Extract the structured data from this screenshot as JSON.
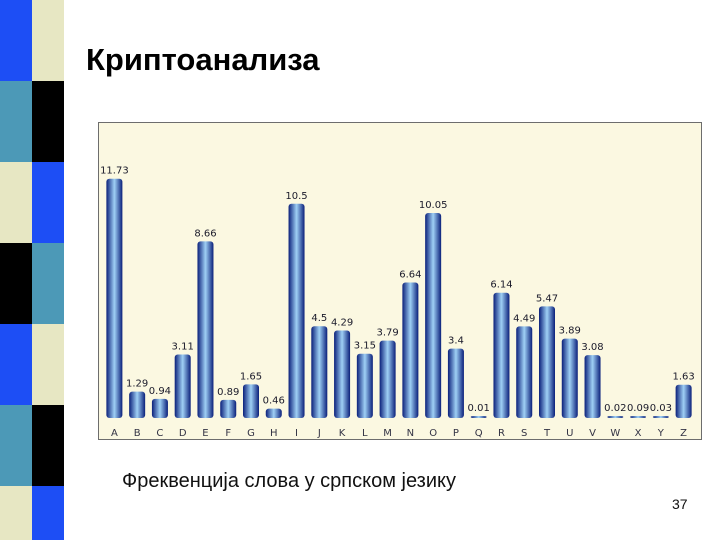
{
  "slide": {
    "title": "Криптоанализа",
    "caption": "Фреквенција слова у српском језику",
    "page_number": "37"
  },
  "colors": {
    "panel_background": "#fbf8e1",
    "bar_dark": "#0a1f7a",
    "bar_light": "#9fd0f5",
    "strip_blue": "#1d4ef5",
    "strip_teal": "#4c99b7",
    "strip_cream": "#e7e7c3",
    "strip_black": "#000000"
  },
  "chart_data": {
    "type": "bar",
    "title": "",
    "xlabel": "",
    "ylabel": "",
    "ylim": [
      0,
      12.5
    ],
    "grid": false,
    "legend": "none",
    "categories": [
      "A",
      "B",
      "C",
      "D",
      "E",
      "F",
      "G",
      "H",
      "I",
      "J",
      "K",
      "L",
      "M",
      "N",
      "O",
      "P",
      "Q",
      "R",
      "S",
      "T",
      "U",
      "V",
      "W",
      "X",
      "Y",
      "Z"
    ],
    "values": [
      11.73,
      1.29,
      0.94,
      3.11,
      8.66,
      0.89,
      1.65,
      0.46,
      10.5,
      4.5,
      4.29,
      3.15,
      3.79,
      6.64,
      10.05,
      3.4,
      0.01,
      6.14,
      4.49,
      5.47,
      3.89,
      3.08,
      0.02,
      0.09,
      0.03,
      1.63
    ],
    "value_labels": [
      "11.73",
      "1.29",
      "0.94",
      "3.11",
      "8.66",
      "0.89",
      "1.65",
      "0.46",
      "10.5",
      "4.5",
      "4.29",
      "3.15",
      "3.79",
      "6.64",
      "10.05",
      "3.4",
      "0.01",
      "6.14",
      "4.49",
      "5.47",
      "3.89",
      "3.08",
      "0.02",
      "0.09",
      "0.03",
      "1.63"
    ]
  }
}
